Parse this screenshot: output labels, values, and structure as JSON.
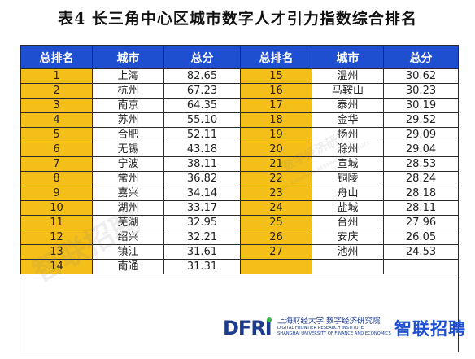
{
  "title": "表4   长三角中心区城市数字人才引力指数综合排名",
  "headers": [
    "总排名",
    "城市",
    "总分",
    "总排名",
    "城市",
    "总分"
  ],
  "left_rows": [
    {
      "rank": "1",
      "city": "上海",
      "score": "82.65"
    },
    {
      "rank": "2",
      "city": "杭州",
      "score": "67.23"
    },
    {
      "rank": "3",
      "city": "南京",
      "score": "64.35"
    },
    {
      "rank": "4",
      "city": "苏州",
      "score": "55.10"
    },
    {
      "rank": "5",
      "city": "合肥",
      "score": "52.11"
    },
    {
      "rank": "6",
      "city": "无锡",
      "score": "43.18"
    },
    {
      "rank": "7",
      "city": "宁波",
      "score": "38.11"
    },
    {
      "rank": "8",
      "city": "常州",
      "score": "36.82"
    },
    {
      "rank": "9",
      "city": "嘉兴",
      "score": "34.14"
    },
    {
      "rank": "10",
      "city": "湖州",
      "score": "33.17"
    },
    {
      "rank": "11",
      "city": "芜湖",
      "score": "32.95"
    },
    {
      "rank": "12",
      "city": "绍兴",
      "score": "32.21"
    },
    {
      "rank": "13",
      "city": "镇江",
      "score": "31.61"
    },
    {
      "rank": "14",
      "city": "南通",
      "score": "31.31"
    }
  ],
  "right_rows": [
    {
      "rank": "15",
      "city": "温州",
      "score": "30.62"
    },
    {
      "rank": "16",
      "city": "马鞍山",
      "score": "30.23"
    },
    {
      "rank": "17",
      "city": "泰州",
      "score": "30.19"
    },
    {
      "rank": "18",
      "city": "金华",
      "score": "29.52"
    },
    {
      "rank": "19",
      "city": "扬州",
      "score": "29.09"
    },
    {
      "rank": "20",
      "city": "滁州",
      "score": "29.04"
    },
    {
      "rank": "21",
      "city": "宣城",
      "score": "28.53"
    },
    {
      "rank": "22",
      "city": "铜陵",
      "score": "28.24"
    },
    {
      "rank": "23",
      "city": "舟山",
      "score": "28.18"
    },
    {
      "rank": "24",
      "city": "盐城",
      "score": "28.11"
    },
    {
      "rank": "25",
      "city": "台州",
      "score": "27.96"
    },
    {
      "rank": "26",
      "city": "安庆",
      "score": "26.05"
    },
    {
      "rank": "27",
      "city": "池州",
      "score": "24.53"
    },
    {
      "rank": "",
      "city": "",
      "score": ""
    }
  ],
  "footer": {
    "dfri_logo": "DFRI",
    "institute_cn": "上海财经大学 数字经济研究院",
    "institute_en_1": "DIGITAL FRONTIER RESEARCH INSTITUTE",
    "institute_en_2": "SHANGHAI UNIVERSITY OF FINANCE AND ECONOMICS",
    "zhaopin_logo": "智联招聘"
  },
  "watermark": {
    "left": "智联招聘",
    "right_cn": "数字经济研究",
    "right_en": "DIGITAL FRONTIER RESEARCH INSTITUTE"
  },
  "colors": {
    "header_bg": "#1f4fd1",
    "rank_bg": "#f5bf1a",
    "logo_blue": "#1c3a8e"
  }
}
